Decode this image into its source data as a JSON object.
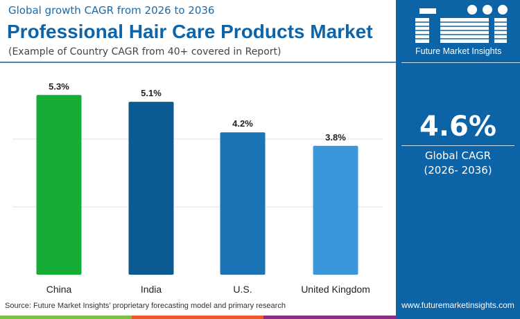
{
  "header": {
    "subtitle": "Global growth CAGR from 2026 to 2036",
    "title": "Professional Hair Care Products Market",
    "note": "(Example of Country CAGR from 40+ covered in Report)"
  },
  "chart_data": {
    "type": "bar",
    "categories": [
      "China",
      "India",
      "U.S.",
      "United Kingdom"
    ],
    "values": [
      5.3,
      5.1,
      4.2,
      3.8
    ],
    "data_labels": [
      "5.3%",
      "5.1%",
      "4.2%",
      "3.8%"
    ],
    "colors": [
      "#16ad36",
      "#0b5a92",
      "#1b74b6",
      "#3a98da"
    ],
    "ylim": [
      0,
      6
    ],
    "grid": true,
    "title": "",
    "xlabel": "",
    "ylabel": ""
  },
  "footer": {
    "source": "Source: Future Market Insights’ proprietary forecasting model and primary research",
    "strip_colors": [
      "#7cc043",
      "#e95a28",
      "#8a2e86"
    ]
  },
  "panel": {
    "logo_text": "Future Market Insights",
    "global_value": "4.6%",
    "global_label": "Global CAGR",
    "period": "(2026- 2036)",
    "url": "www.futuremarketinsights.com",
    "color": "#0c63a6"
  }
}
